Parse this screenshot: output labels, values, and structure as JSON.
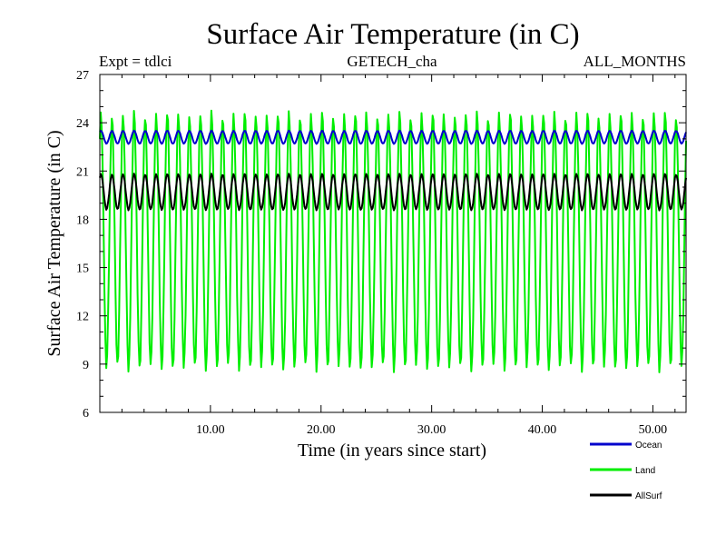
{
  "chart_data": {
    "type": "line",
    "title": "Surface Air Temperature (in C)",
    "subtitle_left": "Expt = tdlci",
    "subtitle_center": "GETECH_cha",
    "subtitle_right": "ALL_MONTHS",
    "xlabel": "Time (in years since start)",
    "ylabel": "Surface Air Temperature (in C)",
    "xlim": [
      0,
      53
    ],
    "ylim": [
      6,
      27
    ],
    "x_ticks": [
      10,
      20,
      30,
      40,
      50
    ],
    "x_tick_labels": [
      "10.00",
      "20.00",
      "30.00",
      "40.00",
      "50.00"
    ],
    "y_ticks": [
      6,
      9,
      12,
      15,
      18,
      21,
      24,
      27
    ],
    "y_tick_labels": [
      "6",
      "9",
      "12",
      "15",
      "18",
      "21",
      "24",
      "27"
    ],
    "legend_position": "bottom-right",
    "series": [
      {
        "name": "Ocean",
        "color": "#0000cc",
        "samples_per_year": 12,
        "seasonal_min": 22.7,
        "seasonal_max": 23.5
      },
      {
        "name": "Land",
        "color": "#00ee00",
        "samples_per_year": 12,
        "seasonal_min": 8.8,
        "seasonal_max": 24.5
      },
      {
        "name": "AllSurf",
        "color": "#000000",
        "samples_per_year": 12,
        "seasonal_min": 18.6,
        "seasonal_max": 20.8
      }
    ]
  }
}
